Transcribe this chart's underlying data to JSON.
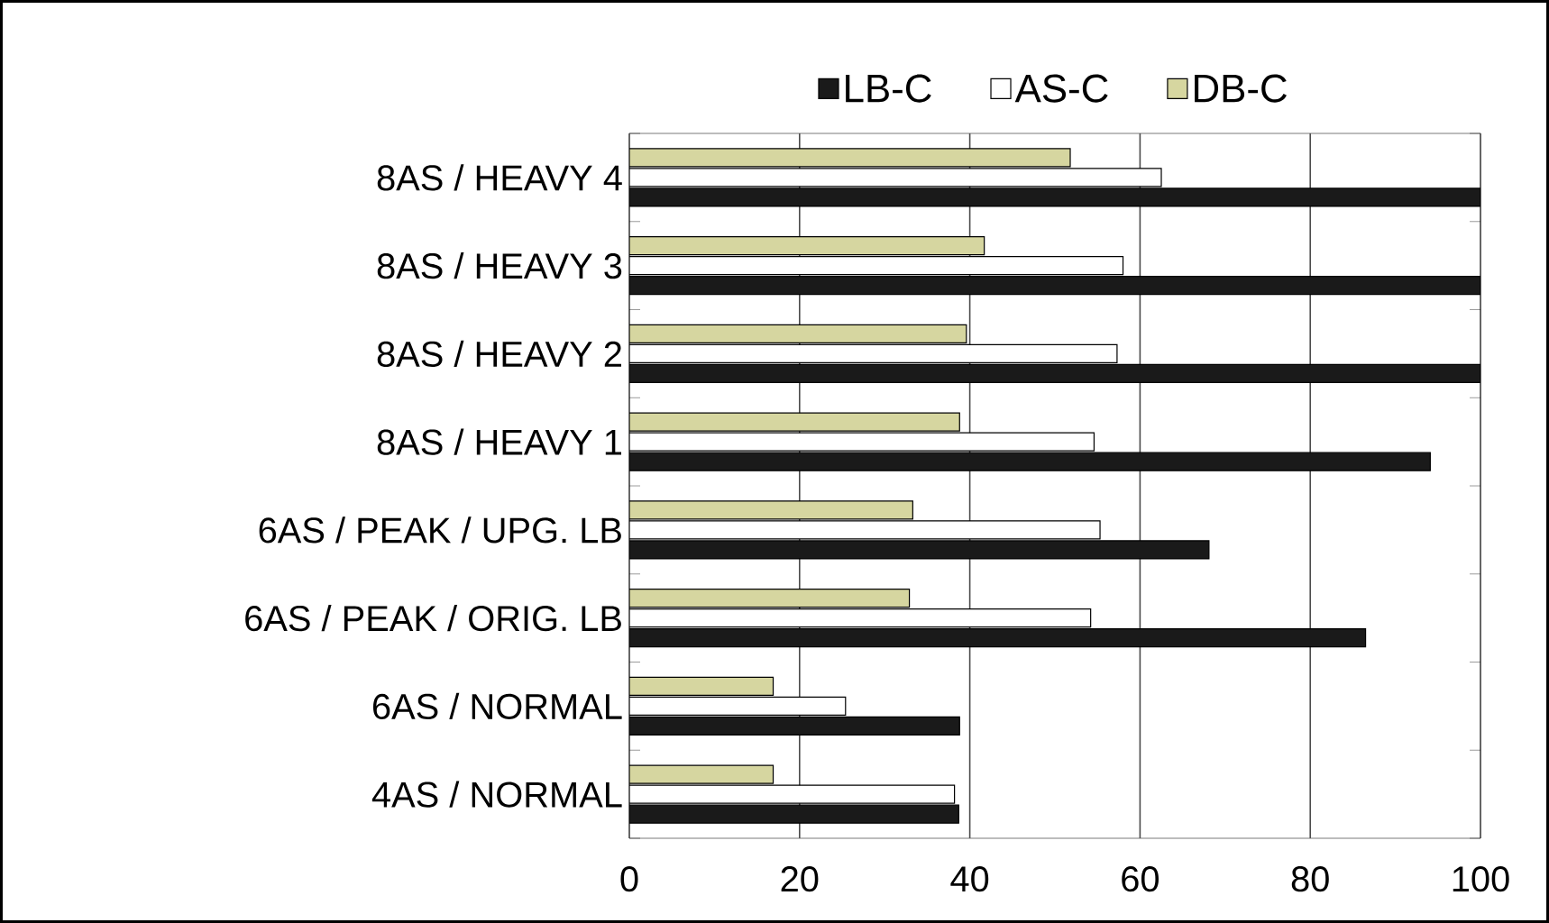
{
  "chart_data": {
    "type": "bar",
    "orientation": "horizontal",
    "categories": [
      "8AS / HEAVY 4",
      "8AS / HEAVY 3",
      "8AS / HEAVY 2",
      "8AS / HEAVY 1",
      "6AS / PEAK / UPG.  LB",
      "6AS / PEAK / ORIG. LB",
      "6AS / NORMAL",
      "4AS / NORMAL"
    ],
    "series": [
      {
        "name": "LB-C",
        "color": "#1a1a1a",
        "values": [
          100,
          100,
          100,
          94.1,
          68.1,
          86.5,
          38.8,
          38.7
        ]
      },
      {
        "name": "AS-C",
        "color": "#ffffff",
        "values": [
          62.5,
          58.0,
          57.3,
          54.6,
          55.3,
          54.2,
          25.4,
          38.2
        ]
      },
      {
        "name": "DB-C",
        "color": "#d6d6a0",
        "values": [
          51.8,
          41.7,
          39.6,
          38.8,
          33.3,
          32.9,
          16.9,
          16.9
        ]
      }
    ],
    "xlim": [
      0,
      100
    ],
    "xticks": [
      0,
      20,
      40,
      60,
      80,
      100
    ],
    "grid": "x",
    "legend": "top"
  }
}
